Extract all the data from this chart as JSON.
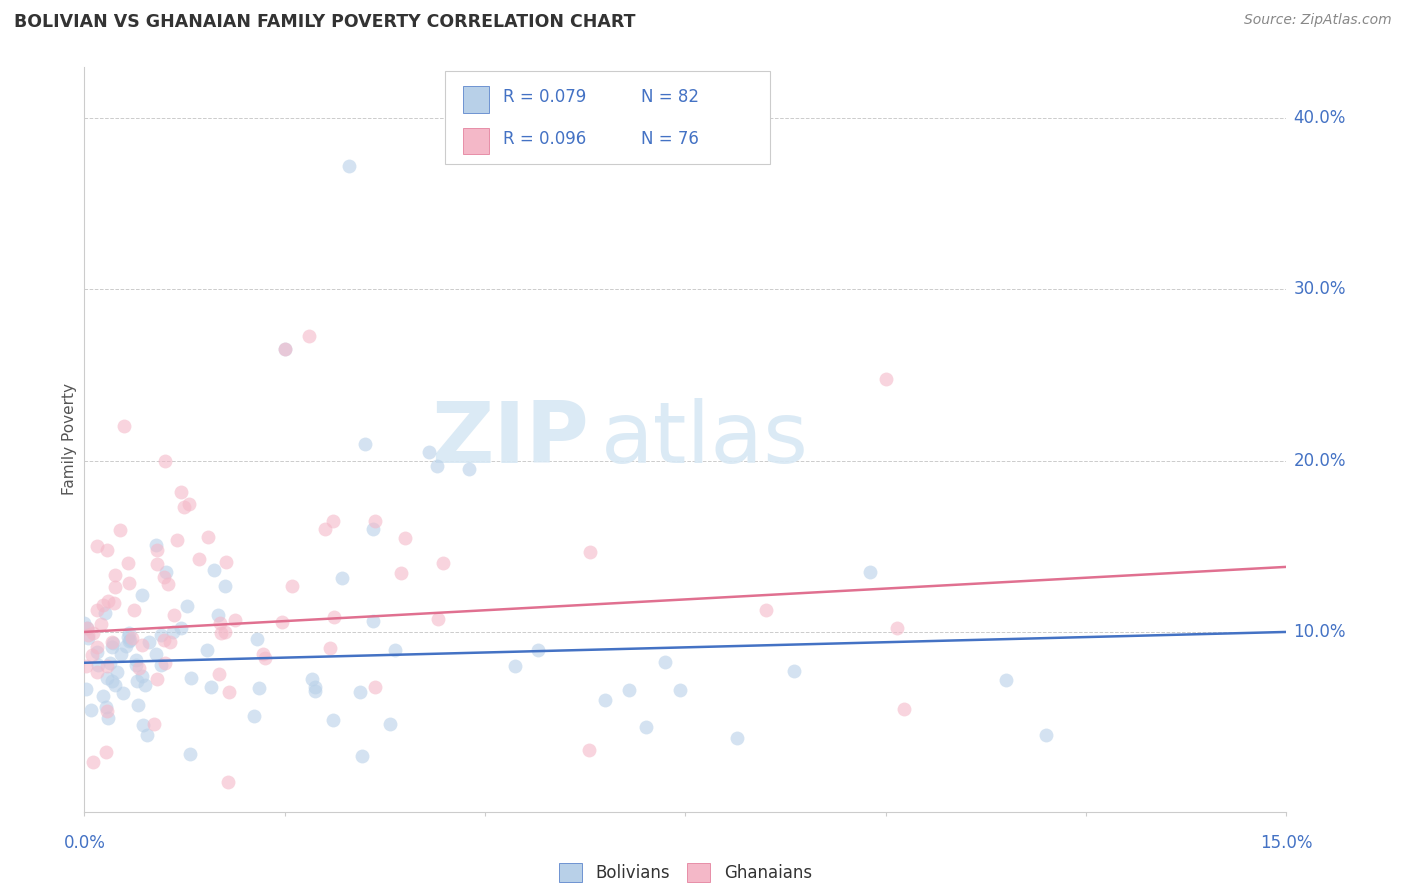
{
  "title": "BOLIVIAN VS GHANAIAN FAMILY POVERTY CORRELATION CHART",
  "source": "Source: ZipAtlas.com",
  "ylabel": "Family Poverty",
  "y_ticks": [
    0.1,
    0.2,
    0.3,
    0.4
  ],
  "y_tick_labels": [
    "10.0%",
    "20.0%",
    "30.0%",
    "40.0%"
  ],
  "x_ticks": [
    0.0,
    0.025,
    0.05,
    0.075,
    0.1,
    0.125,
    0.15
  ],
  "xlim": [
    0.0,
    0.15
  ],
  "ylim": [
    -0.005,
    0.43
  ],
  "legend_r1": "R = 0.079",
  "legend_n1": "N = 82",
  "legend_r2": "R = 0.096",
  "legend_n2": "N = 76",
  "blue_fill": "#b8d0e8",
  "pink_fill": "#f4b8c8",
  "blue_color": "#4472c4",
  "pink_color": "#e07090",
  "title_color": "#333333",
  "axis_color": "#4472c4",
  "source_color": "#888888",
  "grid_color": "#cccccc",
  "background_color": "#ffffff",
  "blue_trend_start_y": 0.082,
  "blue_trend_end_y": 0.1,
  "pink_trend_start_y": 0.1,
  "pink_trend_end_y": 0.138,
  "marker_size": 100,
  "marker_alpha": 0.6
}
